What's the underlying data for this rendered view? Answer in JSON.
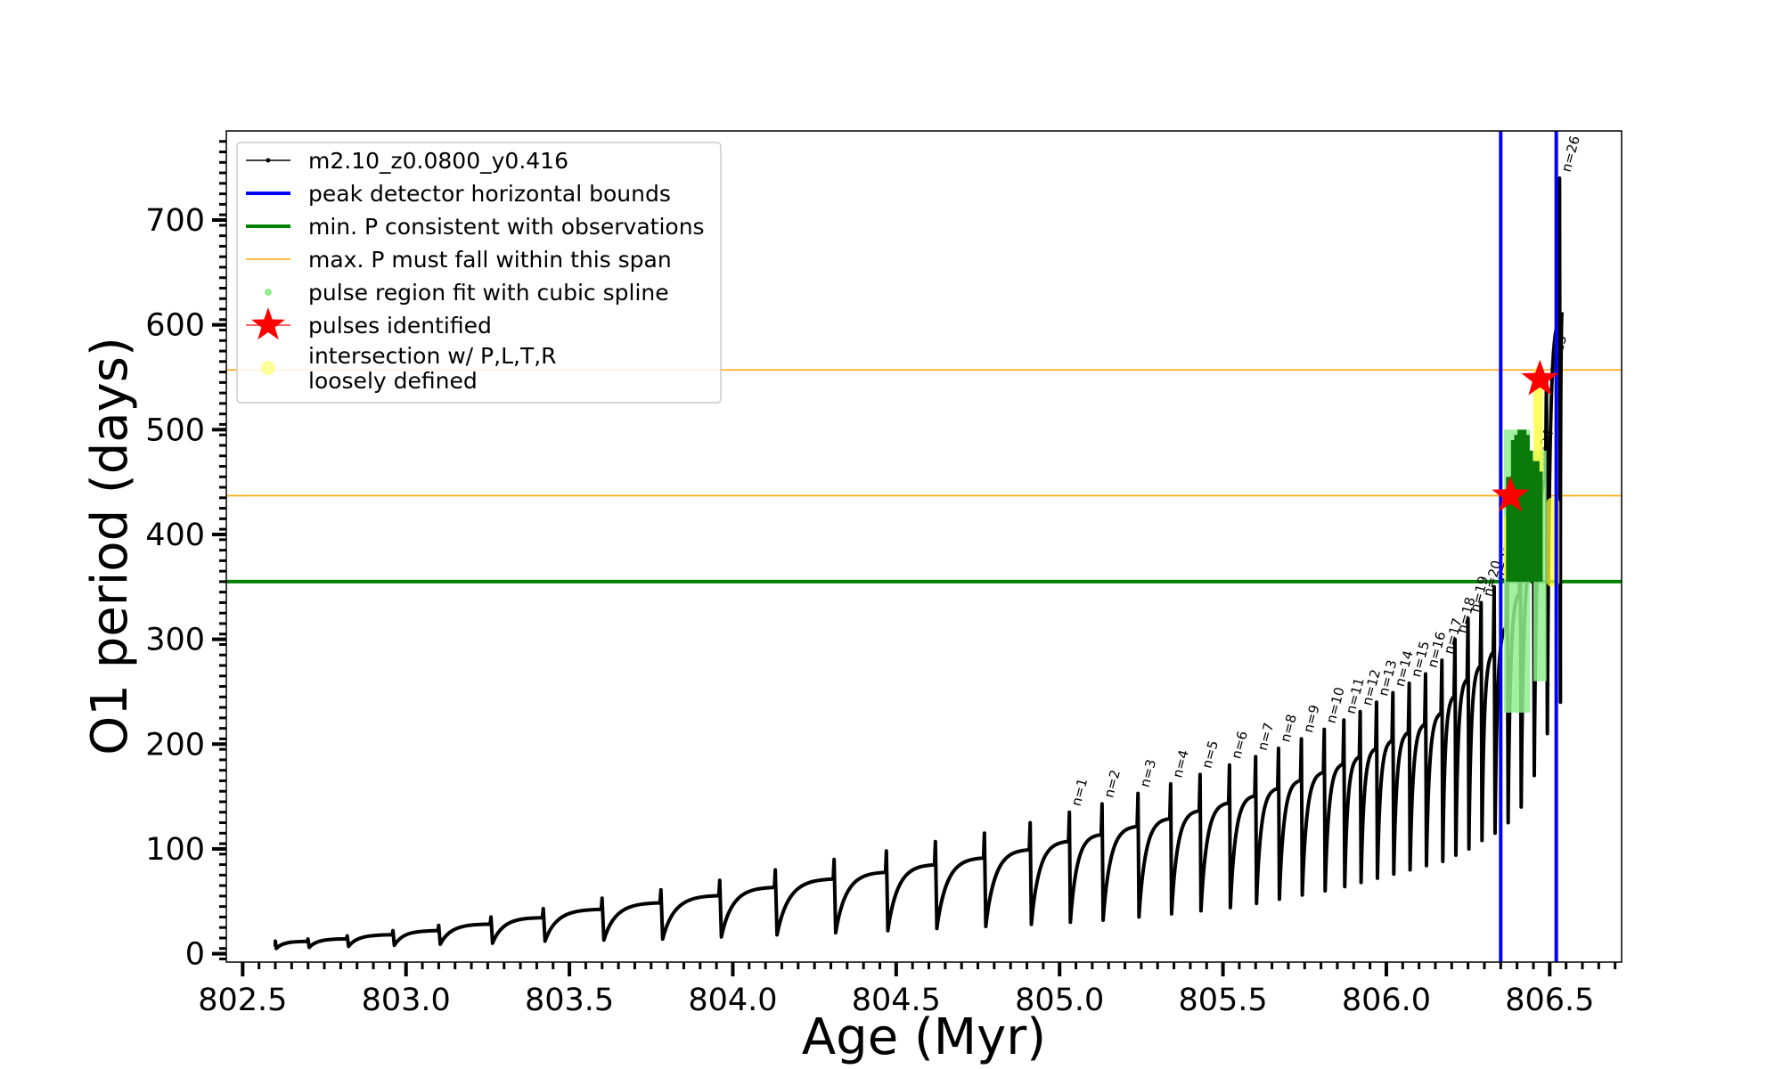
{
  "chart_data": {
    "type": "line",
    "title": "",
    "xlabel": "Age (Myr)",
    "ylabel": "O1 period (days)",
    "xlim": [
      802.45,
      806.72
    ],
    "ylim": [
      -8,
      785
    ],
    "xticks": [
      802.5,
      803.0,
      803.5,
      804.0,
      804.5,
      805.0,
      805.5,
      806.0,
      806.5
    ],
    "xtick_labels": [
      "802.5",
      "803.0",
      "803.5",
      "804.0",
      "804.5",
      "805.0",
      "805.5",
      "806.0",
      "806.5"
    ],
    "yticks": [
      0,
      100,
      200,
      300,
      400,
      500,
      600,
      700
    ],
    "ytick_labels": [
      "0",
      "100",
      "200",
      "300",
      "400",
      "500",
      "600",
      "700"
    ],
    "legend_position": "upper-left",
    "legend": [
      {
        "label": "m2.10_z0.0800_y0.416",
        "kind": "line-marker",
        "color": "#000000"
      },
      {
        "label": "peak detector horizontal bounds",
        "kind": "line",
        "color": "#0000ff"
      },
      {
        "label": "min. P consistent with observations",
        "kind": "line",
        "color": "#008000"
      },
      {
        "label": "max. P must fall within this span",
        "kind": "line",
        "color": "#ffa500"
      },
      {
        "label": "pulse region fit with cubic spline",
        "kind": "dot",
        "color": "#90ee90"
      },
      {
        "label": "pulses identified",
        "kind": "star",
        "color": "#ff0000"
      },
      {
        "label": "intersection w/ P,L,T,R\nloosely defined",
        "kind": "dot",
        "color": "#ffff99"
      }
    ],
    "reference_lines": {
      "vertical_blue": [
        806.35,
        806.52
      ],
      "horizontal_green": 355,
      "horizontal_orange": [
        437,
        557
      ]
    },
    "pulses": [
      {
        "x": 802.6,
        "base": 5,
        "peak": 12
      },
      {
        "x": 802.7,
        "base": 6,
        "peak": 14
      },
      {
        "x": 802.82,
        "base": 7,
        "peak": 17
      },
      {
        "x": 802.96,
        "base": 8,
        "peak": 22
      },
      {
        "x": 803.1,
        "base": 9,
        "peak": 27
      },
      {
        "x": 803.26,
        "base": 10,
        "peak": 35
      },
      {
        "x": 803.42,
        "base": 12,
        "peak": 43
      },
      {
        "x": 803.6,
        "base": 13,
        "peak": 53
      },
      {
        "x": 803.78,
        "base": 14,
        "peak": 61
      },
      {
        "x": 803.96,
        "base": 16,
        "peak": 70
      },
      {
        "x": 804.13,
        "base": 18,
        "peak": 80
      },
      {
        "x": 804.31,
        "base": 20,
        "peak": 90
      },
      {
        "x": 804.47,
        "base": 22,
        "peak": 98
      },
      {
        "x": 804.62,
        "base": 24,
        "peak": 107
      },
      {
        "x": 804.77,
        "base": 26,
        "peak": 115
      },
      {
        "x": 804.91,
        "base": 28,
        "peak": 125
      },
      {
        "x": 805.03,
        "base": 30,
        "peak": 135,
        "label": "n=1"
      },
      {
        "x": 805.13,
        "base": 32,
        "peak": 143,
        "label": "n=2"
      },
      {
        "x": 805.24,
        "base": 35,
        "peak": 153,
        "label": "n=3"
      },
      {
        "x": 805.34,
        "base": 38,
        "peak": 162,
        "label": "n=4"
      },
      {
        "x": 805.43,
        "base": 41,
        "peak": 171,
        "label": "n=5"
      },
      {
        "x": 805.52,
        "base": 44,
        "peak": 180,
        "label": "n=6"
      },
      {
        "x": 805.6,
        "base": 48,
        "peak": 188,
        "label": "n=7"
      },
      {
        "x": 805.67,
        "base": 52,
        "peak": 196,
        "label": "n=8"
      },
      {
        "x": 805.74,
        "base": 56,
        "peak": 205,
        "label": "n=9"
      },
      {
        "x": 805.81,
        "base": 60,
        "peak": 214,
        "label": "n=10"
      },
      {
        "x": 805.87,
        "base": 64,
        "peak": 223,
        "label": "n=11"
      },
      {
        "x": 805.92,
        "base": 68,
        "peak": 231,
        "label": "n=12"
      },
      {
        "x": 805.97,
        "base": 72,
        "peak": 240,
        "label": "n=13"
      },
      {
        "x": 806.02,
        "base": 76,
        "peak": 249,
        "label": "n=14"
      },
      {
        "x": 806.07,
        "base": 80,
        "peak": 258,
        "label": "n=15"
      },
      {
        "x": 806.12,
        "base": 84,
        "peak": 267,
        "label": "n=16"
      },
      {
        "x": 806.17,
        "base": 88,
        "peak": 280,
        "label": "n=17"
      },
      {
        "x": 806.21,
        "base": 94,
        "peak": 300,
        "label": "n=18"
      },
      {
        "x": 806.25,
        "base": 100,
        "peak": 320,
        "label": "n=19"
      },
      {
        "x": 806.29,
        "base": 108,
        "peak": 335,
        "label": "n=20"
      },
      {
        "x": 806.33,
        "base": 115,
        "peak": 350,
        "label": "n=21"
      },
      {
        "x": 806.37,
        "base": 125,
        "peak": 380,
        "label": "n=22"
      },
      {
        "x": 806.41,
        "base": 140,
        "peak": 420,
        "label": "n=23"
      },
      {
        "x": 806.45,
        "base": 170,
        "peak": 460,
        "label": "n=24"
      },
      {
        "x": 806.49,
        "base": 210,
        "peak": 550,
        "label": "n=25"
      },
      {
        "x": 806.53,
        "base": 240,
        "peak": 740,
        "label": "n=26"
      }
    ],
    "stars": [
      {
        "x": 806.38,
        "y": 437
      },
      {
        "x": 806.47,
        "y": 548
      }
    ],
    "spline_regions": [
      {
        "x0": 806.36,
        "x1": 806.44,
        "y0": 230,
        "y1": 500,
        "color": "#90ee90"
      },
      {
        "x0": 806.45,
        "x1": 806.49,
        "y0": 260,
        "y1": 480,
        "color": "#90ee90"
      }
    ],
    "yellow_regions": [
      {
        "x0": 806.36,
        "x1": 806.4,
        "y0": 355,
        "y1": 420
      },
      {
        "x0": 806.45,
        "x1": 806.48,
        "y0": 355,
        "y1": 560
      },
      {
        "x0": 806.49,
        "x1": 806.53,
        "y0": 350,
        "y1": 435
      }
    ],
    "green_bars": [
      {
        "x": 806.38,
        "y0": 355,
        "y1": 455
      },
      {
        "x": 806.395,
        "y0": 355,
        "y1": 490
      },
      {
        "x": 806.405,
        "y0": 355,
        "y1": 495
      },
      {
        "x": 806.415,
        "y0": 355,
        "y1": 500
      },
      {
        "x": 806.425,
        "y0": 355,
        "y1": 495
      },
      {
        "x": 806.435,
        "y0": 355,
        "y1": 480
      },
      {
        "x": 806.455,
        "y0": 355,
        "y1": 470
      },
      {
        "x": 806.465,
        "y0": 355,
        "y1": 460
      }
    ]
  }
}
